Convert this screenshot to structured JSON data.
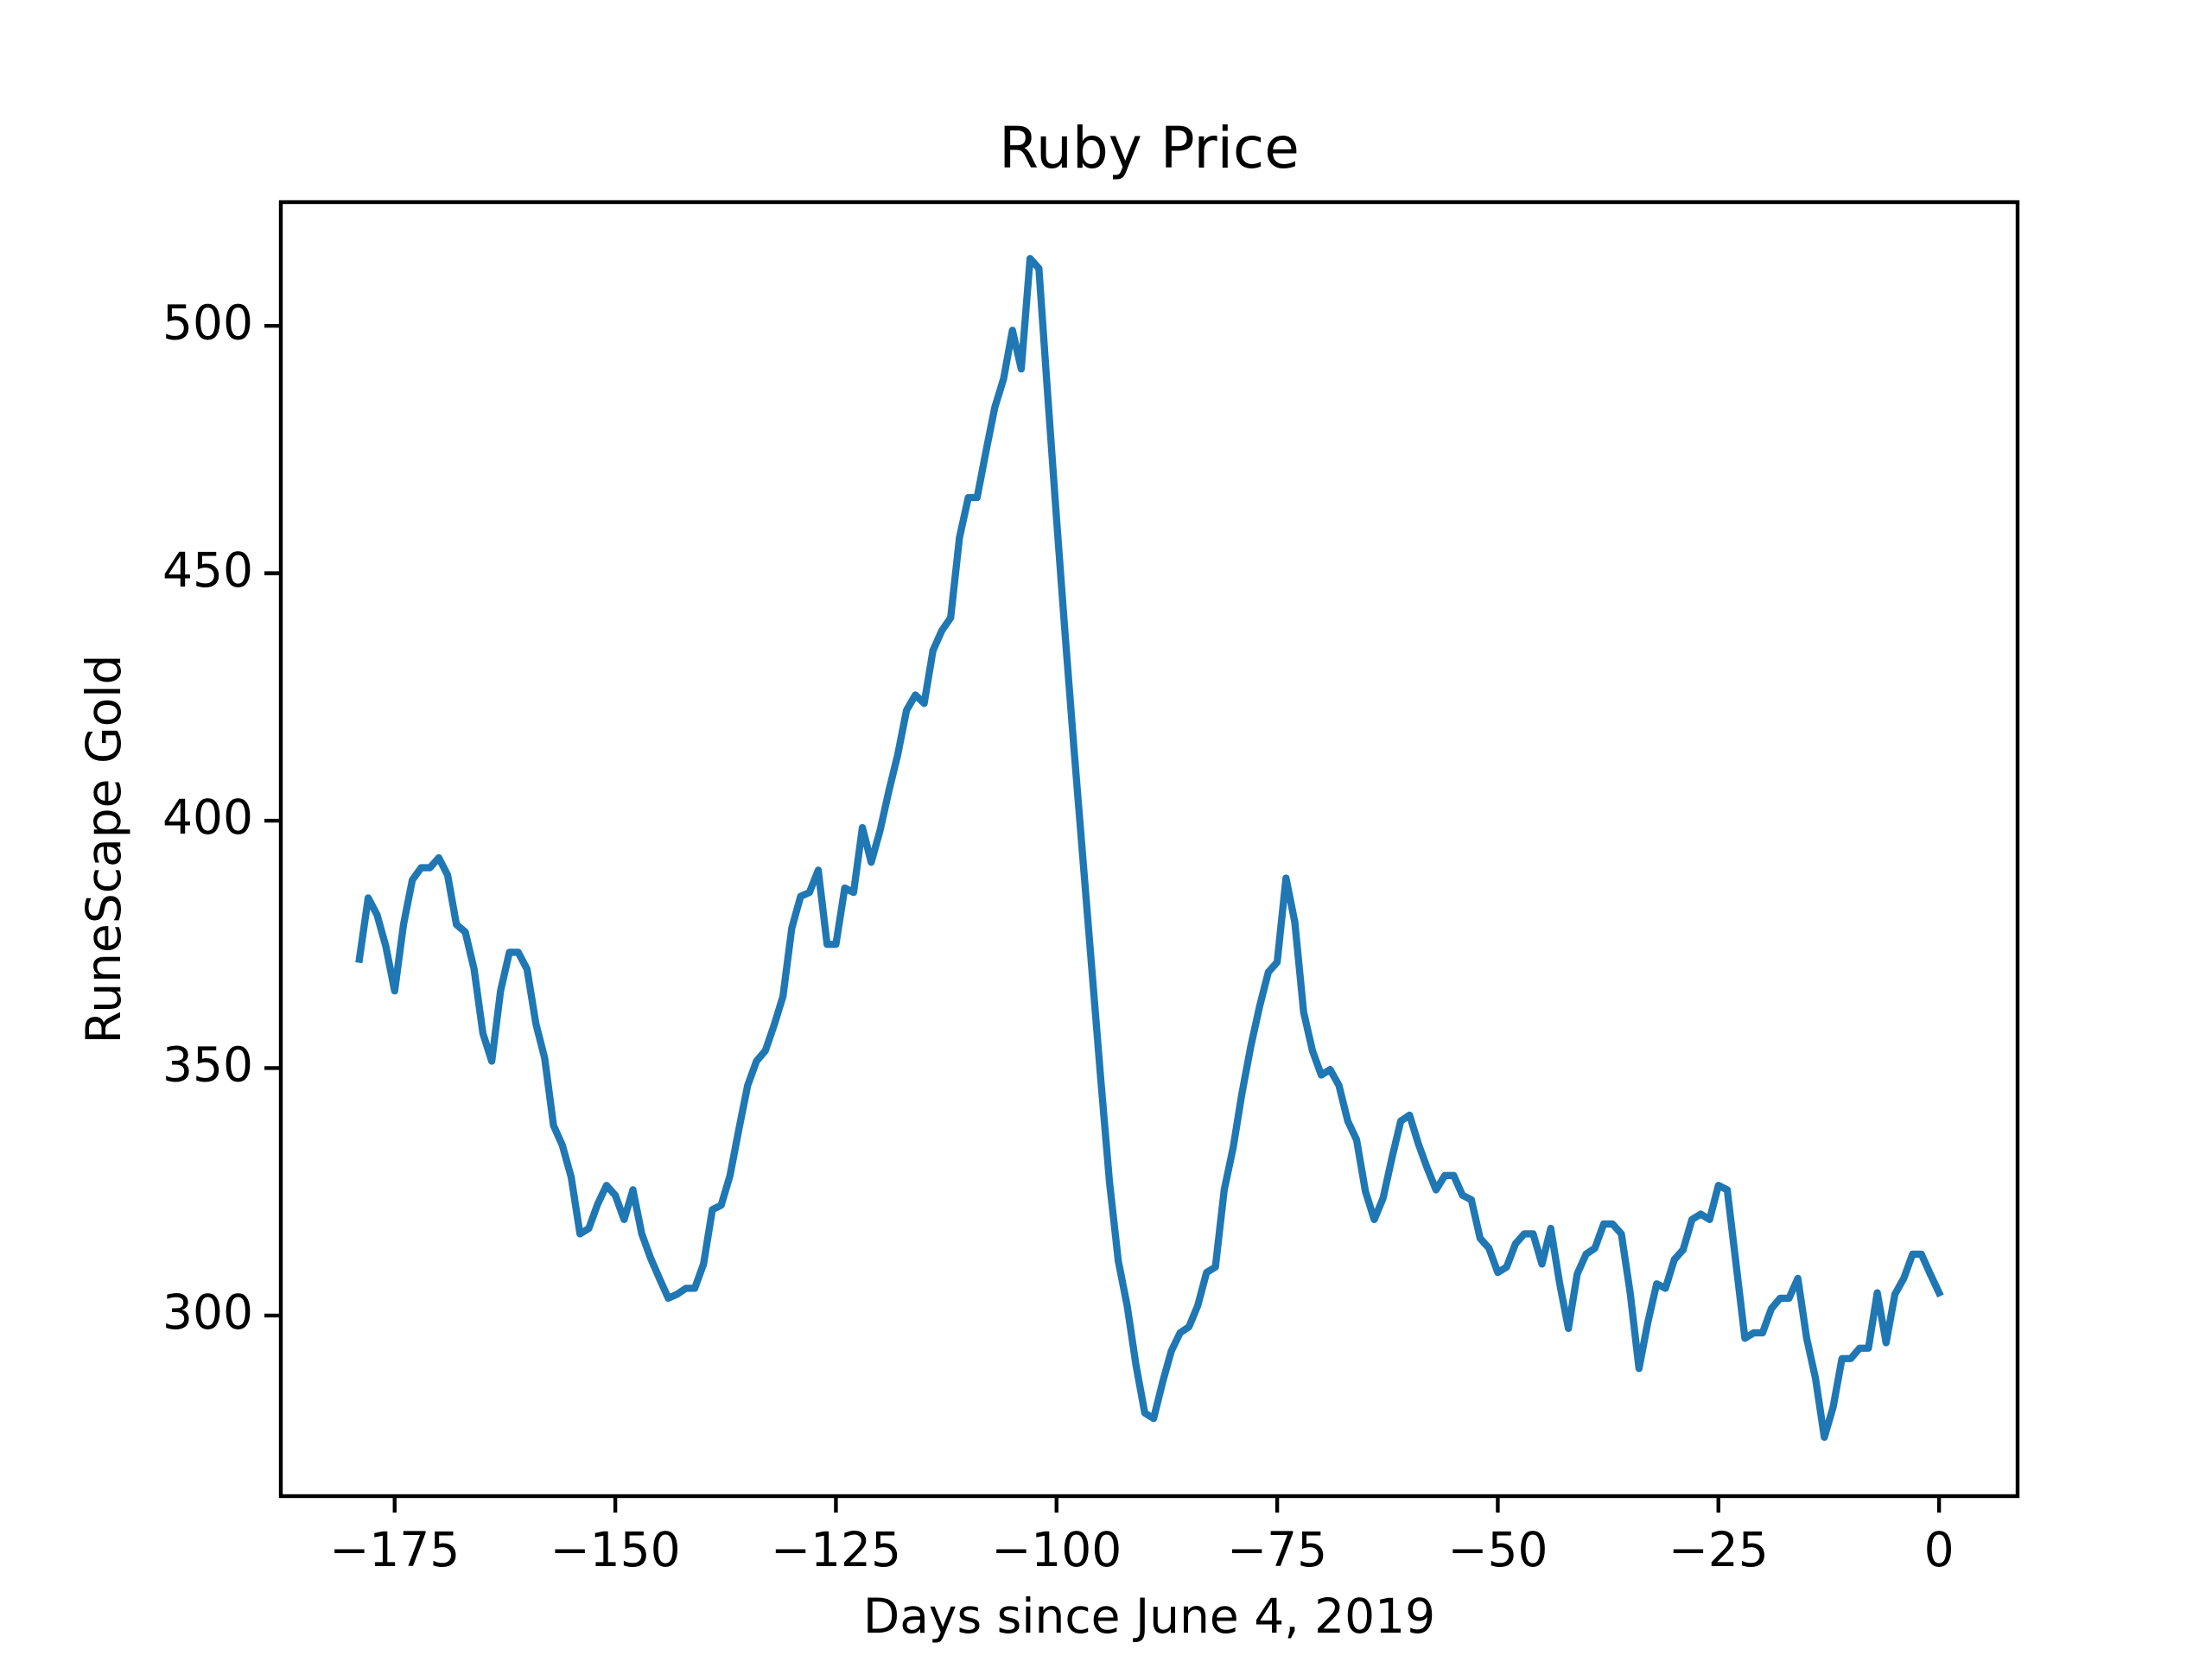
{
  "chart_data": {
    "type": "line",
    "title": "Ruby Price",
    "x_label": "Days since June 4, 2019",
    "y_label": "RuneScape Gold",
    "x": [
      -179,
      -178,
      -177,
      -176,
      -175,
      -174,
      -173,
      -172,
      -171,
      -170,
      -169,
      -168,
      -167,
      -166,
      -165,
      -164,
      -163,
      -162,
      -161,
      -160,
      -159,
      -158,
      -157,
      -156,
      -155,
      -154,
      -153,
      -152,
      -151,
      -150,
      -149,
      -148,
      -147,
      -146,
      -145,
      -144,
      -143,
      -142,
      -141,
      -140,
      -139,
      -138,
      -137,
      -136,
      -135,
      -134,
      -133,
      -132,
      -131,
      -130,
      -129,
      -128,
      -127,
      -126,
      -125,
      -124,
      -123,
      -122,
      -121,
      -120,
      -119,
      -118,
      -117,
      -116,
      -115,
      -114,
      -113,
      -112,
      -111,
      -110,
      -109,
      -108,
      -107,
      -106,
      -105,
      -104,
      -103,
      -102,
      -101,
      -100,
      -99,
      -98,
      -97,
      -96,
      -95,
      -94,
      -93,
      -92,
      -91,
      -90,
      -89,
      -88,
      -87,
      -86,
      -85,
      -84,
      -83,
      -82,
      -81,
      -80,
      -79,
      -78,
      -77,
      -76,
      -75,
      -74,
      -73,
      -72,
      -71,
      -70,
      -69,
      -68,
      -67,
      -66,
      -65,
      -64,
      -63,
      -62,
      -61,
      -60,
      -59,
      -58,
      -57,
      -56,
      -55,
      -54,
      -53,
      -52,
      -51,
      -50,
      -49,
      -48,
      -47,
      -46,
      -45,
      -44,
      -43,
      -42,
      -41,
      -40,
      -39,
      -38,
      -37,
      -36,
      -35,
      -34,
      -33,
      -32,
      -31,
      -30,
      -29,
      -28,
      -27,
      -26,
      -25,
      -24,
      -23,
      -22,
      -21,
      -20,
      -19,
      -18,
      -17,
      -16,
      -15,
      -14,
      -13,
      -12,
      -11,
      -10,
      -9,
      -8,
      -7,
      -6,
      -5,
      -4,
      -3,
      -2,
      -1,
      0
    ],
    "series": [
      {
        "color": "#1f77b4",
        "values": [
          372,
          384.4,
          381,
          374.6,
          365.6,
          379,
          388,
          390.5,
          390.5,
          392.5,
          389,
          379,
          377.5,
          370,
          357,
          351.4,
          365.6,
          373.4,
          373.4,
          370,
          359,
          352,
          338.4,
          334.4,
          328,
          316.5,
          317.6,
          322.5,
          326.3,
          324.3,
          319.4,
          325.4,
          316.5,
          311.6,
          307.5,
          303.5,
          304.3,
          305.5,
          305.5,
          310.4,
          321.4,
          322.3,
          328.3,
          337.6,
          346.5,
          351.4,
          353.5,
          358.7,
          364.5,
          378.3,
          384.7,
          385.5,
          390,
          375,
          375,
          386.4,
          385.5,
          398.6,
          391.6,
          398,
          406,
          413.3,
          422.3,
          425.4,
          423.7,
          434.4,
          438.4,
          441,
          457.2,
          465.3,
          465.3,
          474.6,
          483.5,
          489.3,
          499.1,
          491.3,
          513.6,
          511.6,
          486,
          461,
          437,
          414,
          392,
          370,
          348,
          327,
          311,
          302,
          290,
          280.3,
          279.2,
          286.4,
          292.8,
          296.5,
          297.7,
          302,
          308.7,
          309.8,
          325.4,
          333.8,
          344.8,
          354.3,
          362.4,
          369.4,
          371.4,
          388.4,
          379.5,
          361.3,
          353.5,
          348.6,
          349.7,
          346.5,
          339.3,
          335.5,
          325.1,
          319.4,
          323.7,
          331.8,
          339.3,
          340.5,
          334.7,
          329.8,
          325.4,
          328.3,
          328.3,
          324.3,
          323.4,
          315.6,
          313.6,
          308.7,
          309.8,
          314.5,
          316.5,
          316.5,
          310.4,
          317.6,
          306.6,
          297.4,
          308.4,
          312.4,
          313.6,
          318.5,
          318.5,
          316.5,
          304.6,
          289.3,
          298.6,
          306.4,
          305.5,
          311.3,
          313.3,
          319.4,
          320.5,
          319.4,
          326.3,
          325.4,
          310.4,
          295.4,
          296.5,
          296.5,
          301.4,
          303.5,
          303.5,
          307.5,
          295.4,
          287.3,
          275.4,
          281.5,
          291.3,
          291.3,
          293.4,
          293.4,
          304.6,
          294.5,
          304.3,
          307.5,
          312.4,
          312.4,
          308.4,
          304.6
        ]
      }
    ],
    "xlim": [
      -187.9,
      8.9
    ],
    "ylim": [
      263.5,
      525
    ],
    "xticks": [
      {
        "value": -175,
        "label": "−175"
      },
      {
        "value": -150,
        "label": "−150"
      },
      {
        "value": -125,
        "label": "−125"
      },
      {
        "value": -100,
        "label": "−100"
      },
      {
        "value": -75,
        "label": "−75"
      },
      {
        "value": -50,
        "label": "−50"
      },
      {
        "value": -25,
        "label": "−25"
      },
      0
    ],
    "yticks": [
      300,
      350,
      400,
      450,
      500
    ],
    "grid": false
  }
}
